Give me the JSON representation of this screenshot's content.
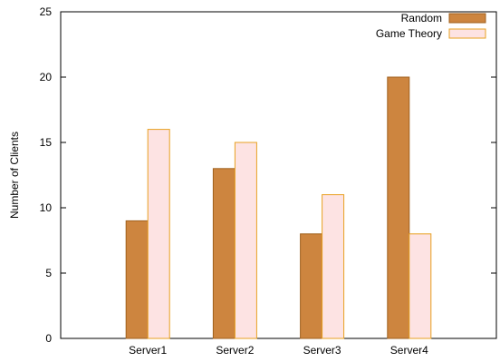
{
  "chart_data": {
    "type": "bar",
    "title": "",
    "xlabel": "",
    "ylabel": "Number of Clients",
    "ylim": [
      0,
      25
    ],
    "yticks": [
      0,
      5,
      10,
      15,
      20,
      25
    ],
    "grid": false,
    "legend_position": "top-right",
    "categories": [
      "Server1",
      "Server2",
      "Server3",
      "Server4"
    ],
    "series": [
      {
        "name": "Random",
        "values": [
          9,
          13,
          8,
          20
        ],
        "color": "#cd853f",
        "stroke": "#a0601d"
      },
      {
        "name": "Game Theory",
        "values": [
          16,
          15,
          11,
          8
        ],
        "color": "#fde3e3",
        "stroke": "#e8a020"
      }
    ]
  }
}
